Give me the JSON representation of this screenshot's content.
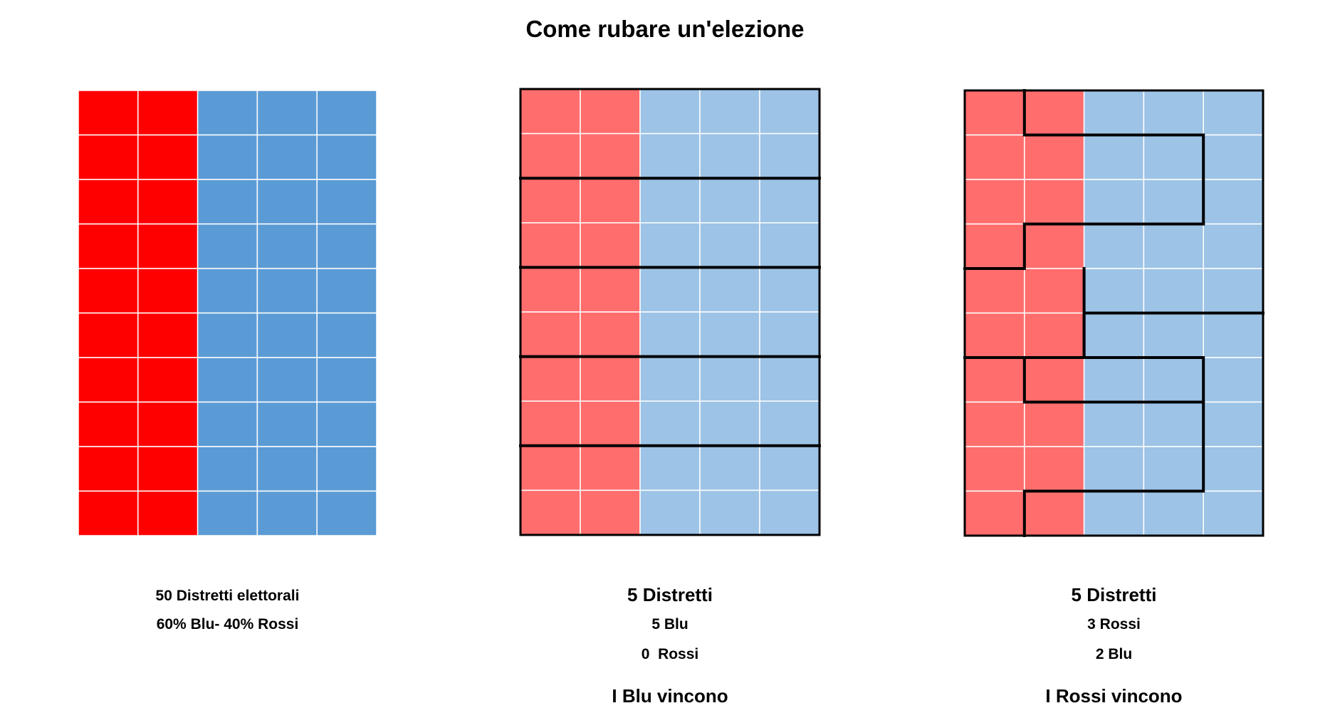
{
  "title": "Come rubare un'elezione",
  "colors": {
    "red_strong": "#ff0000",
    "blue_strong": "#5b9bd5",
    "red_light": "#ff6d6d",
    "blue_light": "#9dc3e6",
    "district_border": "#000000"
  },
  "grid": {
    "rows": 10,
    "cols": 5,
    "red_cols": 2
  },
  "panels": [
    {
      "captions": {
        "line1": "50 Distretti elettorali",
        "line2": "60% Blu- 40% Rossi"
      }
    },
    {
      "captions": {
        "heading": "5 Distretti",
        "line1": "5 Blu",
        "line2": "0  Rossi",
        "result": "I Blu vincono"
      }
    },
    {
      "captions": {
        "heading": "5 Distretti",
        "line1": "3 Rossi",
        "line2": "2 Blu",
        "result": "I Rossi vincono"
      }
    }
  ]
}
